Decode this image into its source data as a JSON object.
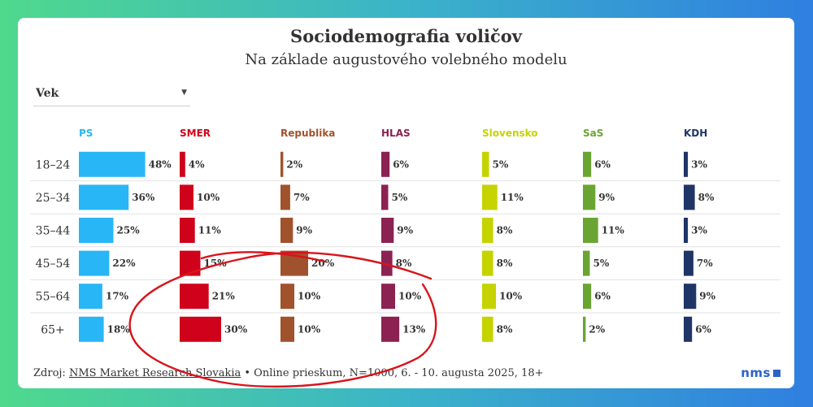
{
  "title": "Sociodemografia voličov",
  "subtitle": "Na základe augustového volebného modelu",
  "dropdown": {
    "selected": "Vek"
  },
  "source": {
    "prefix": "Zdroj: ",
    "link": "NMS Market Research Slovakia",
    "suffix": " • Online prieskum, N=1000, 6. - 10. augusta 2025, 18+"
  },
  "logo": "nms",
  "chart_data": {
    "type": "bar",
    "categories": [
      "18–24",
      "25–34",
      "35–44",
      "45–54",
      "55–64",
      "65+"
    ],
    "series": [
      {
        "name": "PS",
        "color": "#29b6f6",
        "values": [
          48,
          36,
          25,
          22,
          17,
          18
        ]
      },
      {
        "name": "SMER",
        "color": "#d0021b",
        "values": [
          4,
          10,
          11,
          15,
          21,
          30
        ]
      },
      {
        "name": "Republika",
        "color": "#a0522d",
        "values": [
          2,
          7,
          9,
          20,
          10,
          10
        ]
      },
      {
        "name": "HLAS",
        "color": "#8b2252",
        "values": [
          6,
          5,
          9,
          8,
          10,
          13
        ]
      },
      {
        "name": "Slovensko",
        "color": "#c5d300",
        "values": [
          5,
          11,
          8,
          8,
          10,
          8
        ]
      },
      {
        "name": "SaS",
        "color": "#6aa533",
        "values": [
          6,
          9,
          11,
          5,
          6,
          2
        ]
      },
      {
        "name": "KDH",
        "color": "#1f3566",
        "values": [
          3,
          8,
          3,
          7,
          9,
          6
        ]
      }
    ],
    "value_suffix": "%"
  }
}
